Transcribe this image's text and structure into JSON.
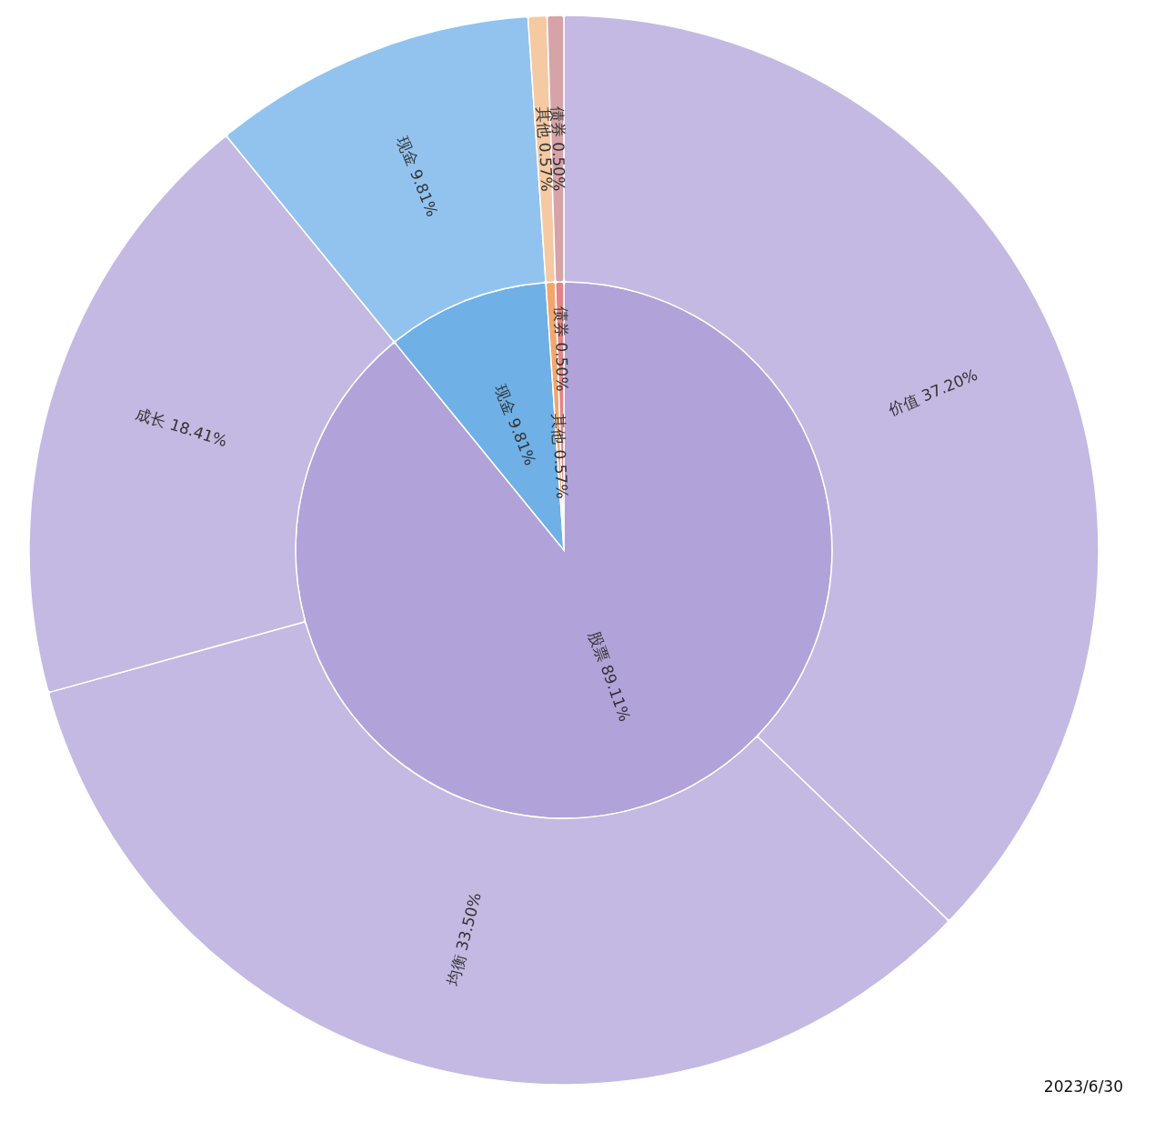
{
  "chart_data": {
    "type": "pie",
    "legend": false,
    "data_labels": true,
    "categories": [
      "股票",
      "价值",
      "均衡",
      "成长",
      "现金",
      "其他",
      "债券"
    ],
    "series": [
      {
        "values": [
          89.11,
          null,
          null,
          null,
          9.81,
          0.57,
          0.5
        ],
        "value_labels": [
          "89.11%",
          null,
          null,
          null,
          "9.81%",
          "0.57%",
          "0.50%"
        ],
        "colors": [
          "#b1a3d9",
          null,
          null,
          null,
          "#6fb0e6",
          "#f2a66e",
          "#e08585"
        ]
      },
      {
        "values": [
          null,
          37.2,
          33.5,
          18.41,
          9.81,
          0.57,
          0.5
        ],
        "value_labels": [
          null,
          "37.20%",
          "33.50%",
          "18.41%",
          "9.81%",
          "0.57%",
          "0.50%"
        ],
        "colors": [
          null,
          "#c4b9e2",
          "#c4b9e2",
          "#c4b9e2",
          "#92c3ef",
          "#f5c9a2",
          "#d6a3a8"
        ]
      }
    ],
    "annotations": [
      "2023/6/30"
    ]
  }
}
